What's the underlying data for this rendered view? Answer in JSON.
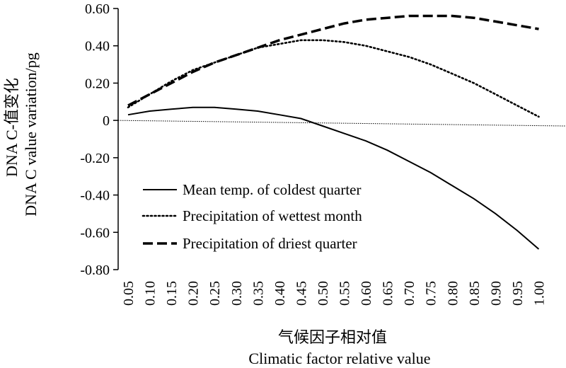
{
  "chart_data": {
    "type": "line",
    "xlabel": "气候因子相对值",
    "xlabel_en": "Climatic factor relative value",
    "ylabel": "DNA C-值变化",
    "ylabel_en": "DNA C value variation/pg",
    "x": [
      0.05,
      0.1,
      0.15,
      0.2,
      0.25,
      0.3,
      0.35,
      0.4,
      0.45,
      0.5,
      0.55,
      0.6,
      0.65,
      0.7,
      0.75,
      0.8,
      0.85,
      0.9,
      0.95,
      1.0
    ],
    "x_tick_labels": [
      "0.05",
      "0.10",
      "0.15",
      "0.20",
      "0.25",
      "0.30",
      "0.35",
      "0.40",
      "0.45",
      "0.50",
      "0.55",
      "0.60",
      "0.65",
      "0.70",
      "0.75",
      "0.80",
      "0.85",
      "0.90",
      "0.95",
      "1.00"
    ],
    "ylim": [
      -0.8,
      0.6
    ],
    "y_ticks": [
      -0.8,
      -0.6,
      -0.4,
      -0.2,
      0,
      0.2,
      0.4,
      0.6
    ],
    "y_tick_labels": [
      "-0.80",
      "-0.60",
      "-0.40",
      "-0.20",
      "0",
      "0.20",
      "0.40",
      "0.60"
    ],
    "reference_line": {
      "from": [
        0.05,
        0.0
      ],
      "to": [
        1.0,
        -0.03
      ]
    },
    "legend_position": "lower-left",
    "series": [
      {
        "name": "Mean temp. of coldest quarter",
        "style": "solid",
        "values": [
          0.03,
          0.05,
          0.06,
          0.07,
          0.07,
          0.06,
          0.05,
          0.03,
          0.01,
          -0.03,
          -0.07,
          -0.11,
          -0.16,
          -0.22,
          -0.28,
          -0.35,
          -0.42,
          -0.5,
          -0.59,
          -0.69
        ]
      },
      {
        "name": "Precipitation of wettest month",
        "style": "dotted",
        "values": [
          0.07,
          0.14,
          0.21,
          0.27,
          0.31,
          0.35,
          0.39,
          0.41,
          0.43,
          0.43,
          0.42,
          0.4,
          0.37,
          0.34,
          0.3,
          0.25,
          0.2,
          0.14,
          0.08,
          0.02
        ]
      },
      {
        "name": "Precipitation of driest quarter",
        "style": "dashed",
        "values": [
          0.08,
          0.14,
          0.2,
          0.26,
          0.31,
          0.35,
          0.39,
          0.43,
          0.46,
          0.49,
          0.52,
          0.54,
          0.55,
          0.56,
          0.56,
          0.56,
          0.55,
          0.53,
          0.51,
          0.49
        ]
      }
    ]
  }
}
